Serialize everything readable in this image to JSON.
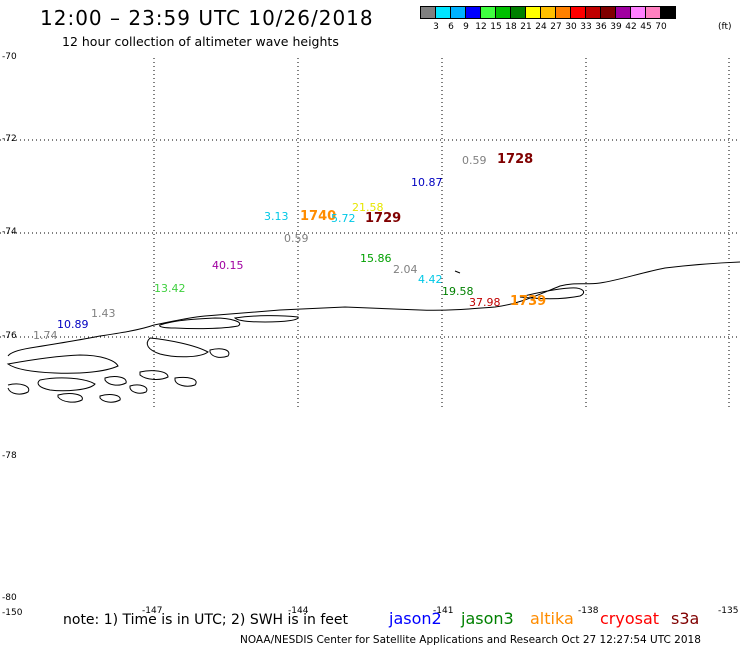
{
  "header": {
    "title": "12:00 – 23:59 UTC 10/26/2018",
    "subtitle": "12 hour collection of altimeter wave heights"
  },
  "colorbar": {
    "colors": [
      "#808080",
      "#00e5ff",
      "#00b2ff",
      "#0000ff",
      "#40ff40",
      "#00c000",
      "#008000",
      "#ffff00",
      "#ffc000",
      "#ff8000",
      "#ff0000",
      "#c00000",
      "#800000",
      "#a000a0",
      "#ff80ff",
      "#ff80c0",
      "#000000"
    ],
    "labels": [
      "3",
      "6",
      "9",
      "12",
      "15",
      "18",
      "21",
      "24",
      "27",
      "30",
      "33",
      "36",
      "39",
      "42",
      "45",
      "70"
    ],
    "unit": "(ft)"
  },
  "axes": {
    "lat_labels": [
      "-70",
      "-72",
      "-74",
      "-76",
      "-78",
      "-80"
    ],
    "lon_labels": [
      "-150",
      "-147",
      "-144",
      "-141",
      "-138",
      "-135"
    ]
  },
  "observations": [
    {
      "text": "0.59",
      "color": "#808080"
    },
    {
      "text": "1728",
      "color": "#800000"
    },
    {
      "text": "10.87",
      "color": "#0000c0"
    },
    {
      "text": "21.58",
      "color": "#e6e600"
    },
    {
      "text": "3.13",
      "color": "#00c8e6"
    },
    {
      "text": "1740",
      "color": "#ff8c00"
    },
    {
      "text": "5.72",
      "color": "#00c8e6"
    },
    {
      "text": "1729",
      "color": "#800000"
    },
    {
      "text": "0.59",
      "color": "#808080"
    },
    {
      "text": "40.15",
      "color": "#a000a0"
    },
    {
      "text": "15.86",
      "color": "#00a000"
    },
    {
      "text": "2.04",
      "color": "#808080"
    },
    {
      "text": "4.42",
      "color": "#00c8e6"
    },
    {
      "text": "13.42",
      "color": "#40d040"
    },
    {
      "text": "19.58",
      "color": "#008000"
    },
    {
      "text": "37.98",
      "color": "#c00000"
    },
    {
      "text": "1739",
      "color": "#ff8c00"
    },
    {
      "text": "1.43",
      "color": "#808080"
    },
    {
      "text": "10.89",
      "color": "#0000c0"
    },
    {
      "text": "1.74",
      "color": "#808080"
    }
  ],
  "note": "note: 1) Time is in UTC; 2) SWH is in feet",
  "legend": [
    {
      "name": "jason2",
      "color": "#0000ff"
    },
    {
      "name": "jason3",
      "color": "#008000"
    },
    {
      "name": "altika",
      "color": "#ff8c00"
    },
    {
      "name": "cryosat",
      "color": "#ff0000"
    },
    {
      "name": "s3a",
      "color": "#800000"
    }
  ],
  "footer": "NOAA/NESDIS Center for Satellite Applications and Research    Oct 27 12:27:54 UTC 2018"
}
